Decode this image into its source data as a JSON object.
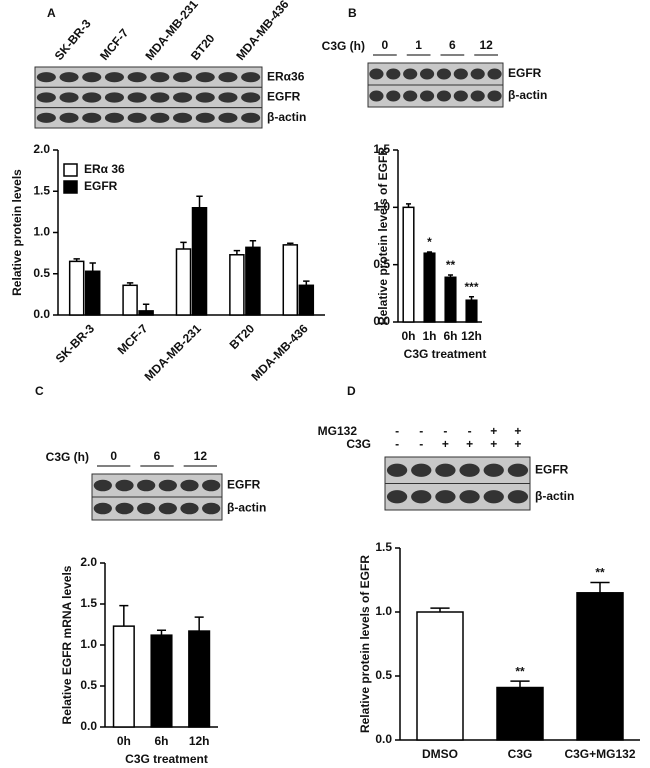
{
  "chart_data": [
    {
      "type": "bar",
      "panel": "A",
      "blot": {
        "lanes": [
          "SK-BR-3",
          "MCF-7",
          "MDA-MB-231",
          "BT20",
          "MDA-MB-436"
        ],
        "rows": [
          "ERα36",
          "EGFR",
          "β-actin"
        ]
      },
      "categories": [
        "SK-BR-3",
        "MCF-7",
        "MDA-MB-231",
        "BT20",
        "MDA-MB-436"
      ],
      "series": [
        {
          "name": "ERα 36",
          "color": "#ffffff",
          "values": [
            0.65,
            0.36,
            0.8,
            0.73,
            0.85
          ],
          "errors": [
            0.03,
            0.03,
            0.08,
            0.05,
            0.02
          ]
        },
        {
          "name": "EGFR",
          "color": "#000000",
          "values": [
            0.53,
            0.05,
            1.3,
            0.82,
            0.36
          ],
          "errors": [
            0.1,
            0.08,
            0.14,
            0.08,
            0.05
          ]
        }
      ],
      "y_label": "Relative protein levels",
      "ylim": [
        0,
        2
      ],
      "yticks": [
        {
          "value": 0,
          "label": "0.0"
        },
        {
          "value": 0.5,
          "label": "0.5"
        },
        {
          "value": 1,
          "label": "1.0"
        },
        {
          "value": 1.5,
          "label": "1.5"
        },
        {
          "value": 2,
          "label": "2.0"
        }
      ]
    },
    {
      "type": "bar",
      "panel": "B",
      "blot": {
        "header_label": "C3G (h)",
        "groups": [
          "0",
          "1",
          "6",
          "12"
        ],
        "rows": [
          "EGFR",
          "β-actin"
        ]
      },
      "categories": [
        "0h",
        "1h",
        "6h",
        "12h"
      ],
      "series": [
        {
          "colors": [
            "#ffffff",
            "#000000",
            "#000000",
            "#000000"
          ],
          "values": [
            1.0,
            0.6,
            0.39,
            0.19
          ],
          "errors": [
            0.03,
            0.01,
            0.02,
            0.03
          ],
          "annotations": [
            null,
            "*",
            "**",
            "***"
          ]
        }
      ],
      "y_label": "Relative protein levels of EGFR",
      "x_label": "C3G treatment",
      "ylim": [
        0,
        1.5
      ],
      "yticks": [
        {
          "value": 0,
          "label": "0.0"
        },
        {
          "value": 0.5,
          "label": "0.5"
        },
        {
          "value": 1,
          "label": "1.0"
        },
        {
          "value": 1.5,
          "label": "1.5"
        }
      ]
    },
    {
      "type": "bar",
      "panel": "C",
      "blot": {
        "header_label": "C3G (h)",
        "groups": [
          "0",
          "6",
          "12"
        ],
        "rows": [
          "EGFR",
          "β-actin"
        ]
      },
      "categories": [
        "0h",
        "6h",
        "12h"
      ],
      "series": [
        {
          "colors": [
            "#ffffff",
            "#000000",
            "#000000"
          ],
          "values": [
            1.23,
            1.12,
            1.17
          ],
          "errors": [
            0.25,
            0.06,
            0.17
          ]
        }
      ],
      "y_label": "Relative EGFR mRNA levels",
      "x_label": "C3G treatment",
      "ylim": [
        0,
        2
      ],
      "yticks": [
        {
          "value": 0,
          "label": "0.0"
        },
        {
          "value": 0.5,
          "label": "0.5"
        },
        {
          "value": 1,
          "label": "1.0"
        },
        {
          "value": 1.5,
          "label": "1.5"
        },
        {
          "value": 2,
          "label": "2.0"
        }
      ]
    },
    {
      "type": "bar",
      "panel": "D",
      "blot": {
        "treatments": [
          {
            "label": "MG132",
            "signs": [
              "-",
              "-",
              "-",
              "-",
              "+",
              "+"
            ]
          },
          {
            "label": "C3G",
            "signs": [
              "-",
              "-",
              "+",
              "+",
              "+",
              "+"
            ]
          }
        ],
        "rows": [
          "EGFR",
          "β-actin"
        ]
      },
      "categories": [
        "DMSO",
        "C3G",
        "C3G+MG132"
      ],
      "series": [
        {
          "colors": [
            "#ffffff",
            "#000000",
            "#000000"
          ],
          "values": [
            1.0,
            0.41,
            1.15
          ],
          "errors": [
            0.03,
            0.05,
            0.08
          ],
          "annotations": [
            null,
            "**",
            "**"
          ]
        }
      ],
      "y_label": "Relative protein levels of EGFR",
      "ylim": [
        0,
        1.5
      ],
      "yticks": [
        {
          "value": 0,
          "label": "0.0"
        },
        {
          "value": 0.5,
          "label": "0.5"
        },
        {
          "value": 1,
          "label": "1.0"
        },
        {
          "value": 1.5,
          "label": "1.5"
        }
      ]
    }
  ]
}
